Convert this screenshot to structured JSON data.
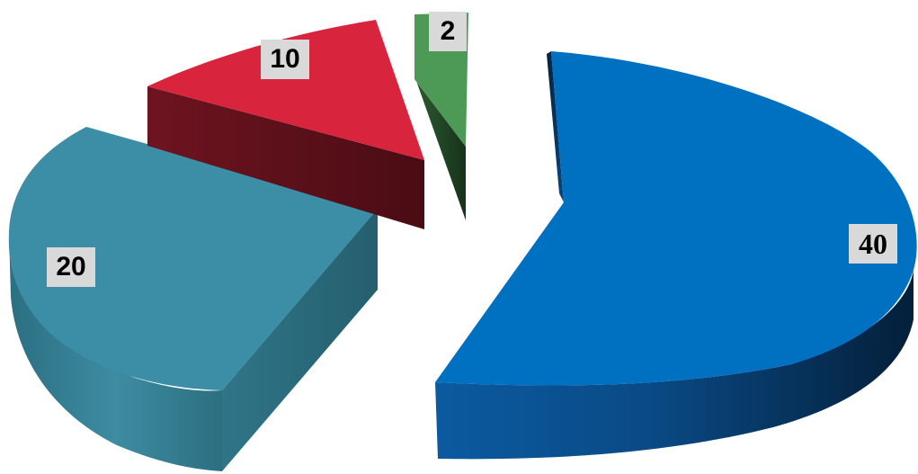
{
  "chart_data": {
    "type": "pie",
    "title": "",
    "style": "3d-exploded",
    "slices": [
      {
        "value": 40,
        "label": "40",
        "color": "#0070c0"
      },
      {
        "value": 20,
        "label": "20",
        "color": "#3b8ea5"
      },
      {
        "value": 10,
        "label": "10",
        "color": "#d9243e"
      },
      {
        "value": 2,
        "label": "2",
        "color": "#4c9a55"
      }
    ]
  }
}
